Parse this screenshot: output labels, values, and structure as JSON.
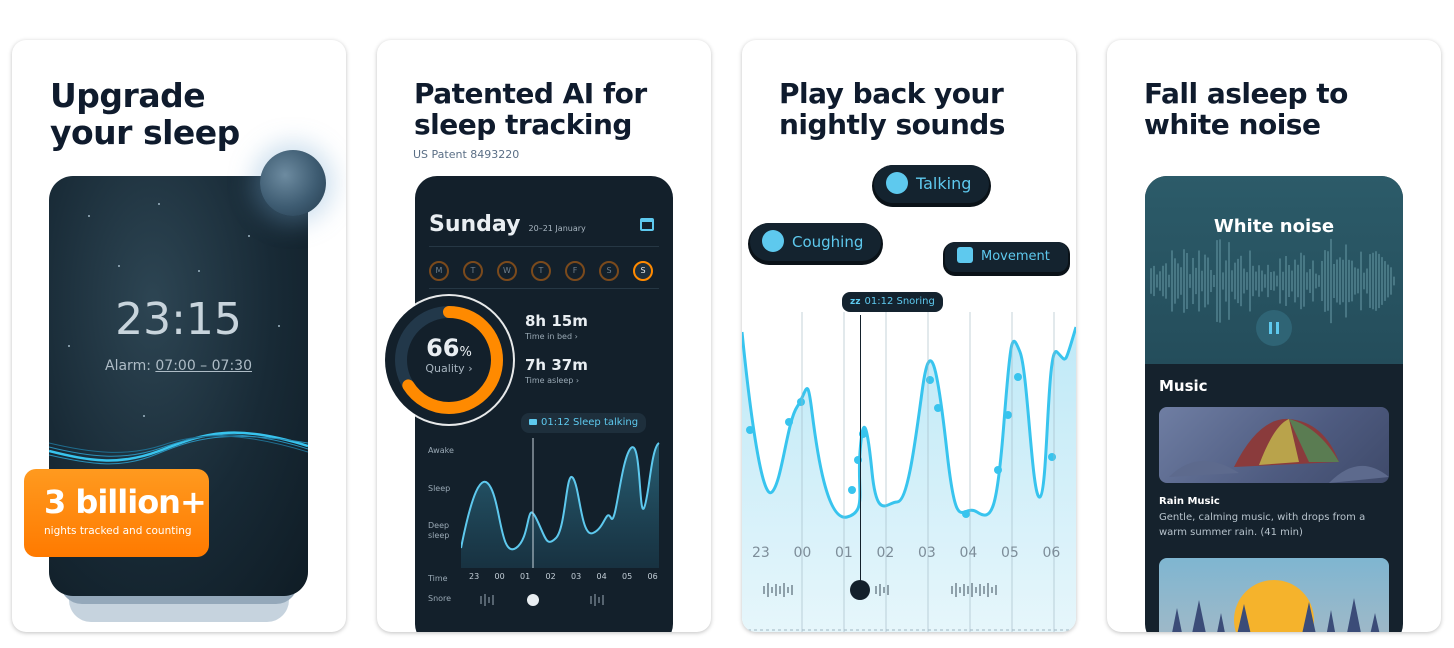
{
  "cards": [
    {
      "headline_lines": [
        "Upgrade",
        "your sleep"
      ],
      "clock": "23:15",
      "alarm_prefix": "Alarm: ",
      "alarm_value": "07:00 – 07:30",
      "badge_big": "3 billion+",
      "badge_small": "nights tracked and counting"
    },
    {
      "headline_lines": [
        "Patented AI for",
        "sleep tracking"
      ],
      "patent": "US Patent 8493220",
      "day_title": "Sunday",
      "date_range": "20–21 January",
      "weekdays": [
        "M",
        "T",
        "W",
        "T",
        "F",
        "S",
        "S"
      ],
      "quality_value": "66",
      "quality_unit": "%",
      "quality_label": "Quality",
      "quality_fraction": 0.66,
      "stats": [
        {
          "value": "8h 15m",
          "label": "Time in bed"
        },
        {
          "value": "7h 37m",
          "label": "Time asleep"
        }
      ],
      "event_chip": "01:12 Sleep talking",
      "y_labels": [
        "Awake",
        "Sleep",
        "Deep sleep"
      ],
      "x_title": "Time",
      "snore_label": "Snore",
      "hours": [
        "23",
        "00",
        "01",
        "02",
        "03",
        "04",
        "05",
        "06"
      ]
    },
    {
      "headline_lines": [
        "Play back your",
        "nightly sounds"
      ],
      "pills": [
        "Talking",
        "Coughing",
        "Movement"
      ],
      "event_chip": "01:12 Snoring",
      "hours": [
        "23",
        "00",
        "01",
        "02",
        "03",
        "04",
        "05",
        "06"
      ]
    },
    {
      "headline_lines": [
        "Fall asleep to",
        "white noise"
      ],
      "player_title": "White noise",
      "section_title": "Music",
      "track_title": "Rain Music",
      "track_desc": "Gentle, calming music, with drops from a warm summer rain. (41 min)"
    }
  ],
  "colors": {
    "accent_orange": "#ff8a00",
    "accent_cyan": "#5ec9ee",
    "dark_bg": "#13202b",
    "headline": "#0f1b2d"
  }
}
